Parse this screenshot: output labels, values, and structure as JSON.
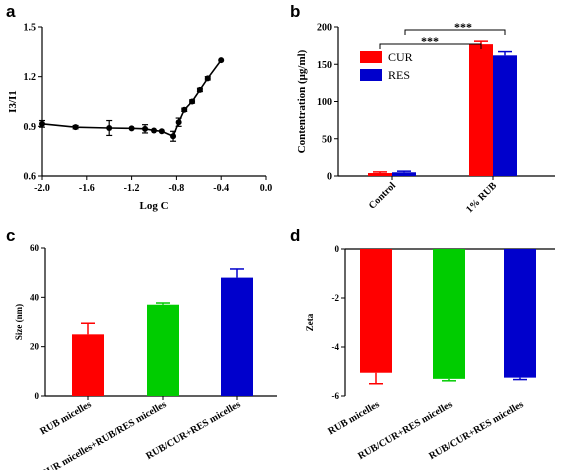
{
  "panels": {
    "a": "a",
    "b": "b",
    "c": "c",
    "d": "d"
  },
  "chart_data": [
    {
      "id": "a",
      "type": "line",
      "xlabel": "Log C",
      "ylabel": "I3/I1",
      "xlim": [
        -2.0,
        0.0
      ],
      "ylim": [
        0.6,
        1.5
      ],
      "xticks": [
        "-2.0",
        "-1.6",
        "-1.2",
        "-0.8",
        "-0.4",
        "0.0"
      ],
      "yticks": [
        "0.6",
        "0.9",
        "1.2",
        "1.5"
      ],
      "x": [
        -2.0,
        -1.7,
        -1.4,
        -1.2,
        -1.08,
        -1.0,
        -0.93,
        -0.83,
        -0.78,
        -0.73,
        -0.66,
        -0.59,
        -0.52,
        -0.4
      ],
      "y": [
        0.915,
        0.895,
        0.89,
        0.888,
        0.885,
        0.875,
        0.87,
        0.84,
        0.925,
        1.0,
        1.05,
        1.12,
        1.19,
        1.3
      ],
      "err": [
        0.02,
        0.01,
        0.045,
        0.005,
        0.025,
        0.005,
        0.005,
        0.03,
        0.025,
        0.01,
        0.01,
        0.01,
        0.01,
        0.005
      ]
    },
    {
      "id": "b",
      "type": "bar",
      "ylabel": "Contentration (μg/ml)",
      "ylim": [
        0,
        200
      ],
      "yticks": [
        "0",
        "50",
        "100",
        "150",
        "200"
      ],
      "categories": [
        "Control",
        "1% RUB"
      ],
      "series": [
        {
          "name": "CUR",
          "color": "#ff0000",
          "values": [
            4,
            177
          ],
          "err": [
            1.5,
            4
          ]
        },
        {
          "name": "RES",
          "color": "#0000cc",
          "values": [
            5,
            162
          ],
          "err": [
            1.5,
            5
          ]
        }
      ],
      "significance": [
        "***",
        "***"
      ],
      "legend": "top-left"
    },
    {
      "id": "c",
      "type": "bar",
      "ylabel": "Size (nm)",
      "ylim": [
        0,
        60
      ],
      "yticks": [
        "0",
        "20",
        "40",
        "60"
      ],
      "categories": [
        "RUB micelles",
        "RUB/CUR micelles+RUB/RES micelles",
        "RUB/CUR+RES micelles"
      ],
      "values": [
        25,
        37,
        48
      ],
      "err": [
        4.5,
        0.7,
        3.5
      ],
      "colors": [
        "#ff0000",
        "#00cc00",
        "#0000cc"
      ]
    },
    {
      "id": "d",
      "type": "bar",
      "ylabel": "Zeta",
      "ylim": [
        -6,
        0
      ],
      "yticks": [
        "0",
        "-2",
        "-4",
        "-6"
      ],
      "categories": [
        "RUB micelles",
        "RUB/CUR+RES micelles",
        "RUB/CUR+RES micelles"
      ],
      "values": [
        -5.05,
        -5.3,
        -5.25
      ],
      "err": [
        0.45,
        0.08,
        0.08
      ],
      "colors": [
        "#ff0000",
        "#00cc00",
        "#0000cc"
      ]
    }
  ]
}
